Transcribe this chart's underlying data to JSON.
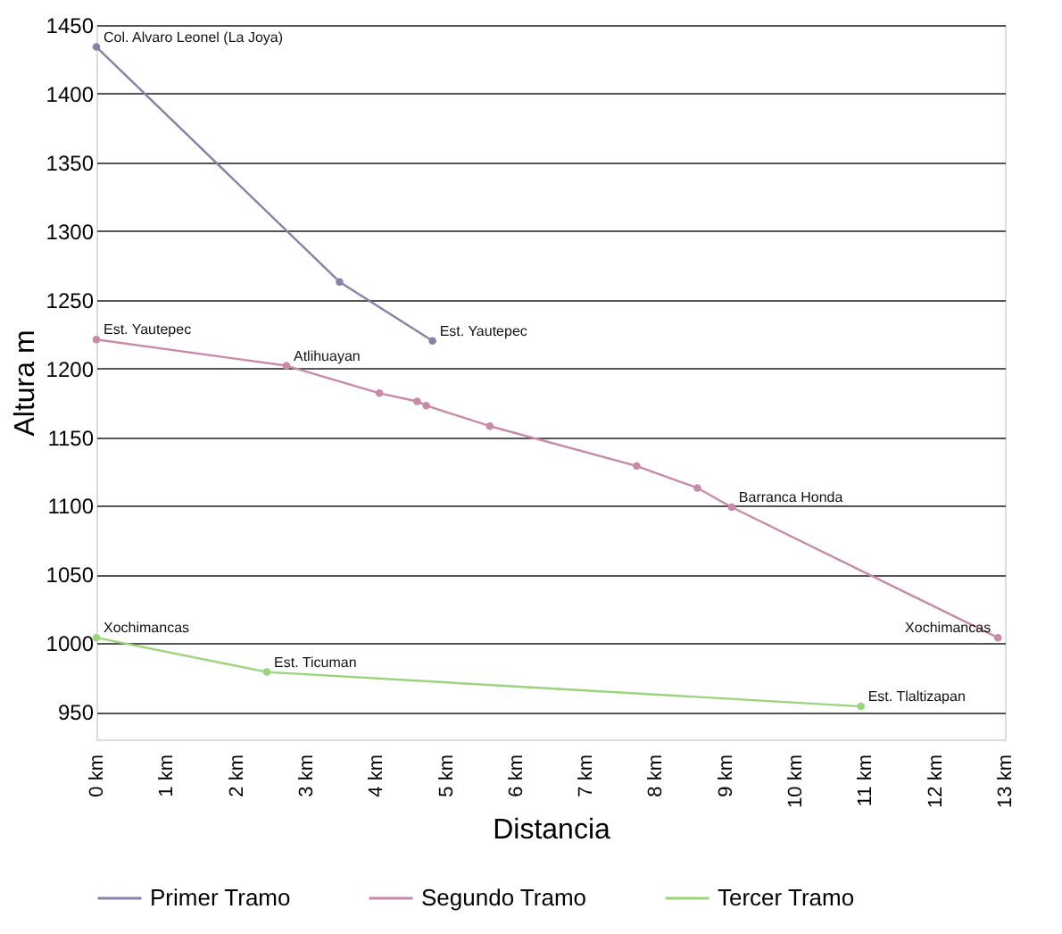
{
  "chart_data": {
    "type": "line",
    "xlabel": "Distancia",
    "ylabel": "Altura m",
    "xlim": [
      0,
      13
    ],
    "ylim": [
      930,
      1450
    ],
    "xticks": [
      {
        "value": 0,
        "label": "0 km"
      },
      {
        "value": 1,
        "label": "1 km"
      },
      {
        "value": 2,
        "label": "2 km"
      },
      {
        "value": 3,
        "label": "3 km"
      },
      {
        "value": 4,
        "label": "4 km"
      },
      {
        "value": 5,
        "label": "5 km"
      },
      {
        "value": 6,
        "label": "6 km"
      },
      {
        "value": 7,
        "label": "7 km"
      },
      {
        "value": 8,
        "label": "8 km"
      },
      {
        "value": 9,
        "label": "9 km"
      },
      {
        "value": 10,
        "label": "10 km"
      },
      {
        "value": 11,
        "label": "11 km"
      },
      {
        "value": 12,
        "label": "12 km"
      },
      {
        "value": 13,
        "label": "13 km"
      }
    ],
    "yticks": [
      950,
      1000,
      1050,
      1100,
      1150,
      1200,
      1250,
      1300,
      1350,
      1400,
      1450
    ],
    "grid": "y",
    "legend": "bottom",
    "marker": "circle",
    "line_style": "solid",
    "series": [
      {
        "name": "Primer Tramo",
        "color": "#8a80a8",
        "x": [
          0,
          3.48,
          4.81
        ],
        "values": [
          1434,
          1263,
          1220
        ]
      },
      {
        "name": "Segundo Tramo",
        "color": "#c98aa8",
        "x": [
          0,
          2.72,
          4.05,
          4.59,
          4.72,
          5.63,
          7.73,
          8.6,
          9.09,
          12.9
        ],
        "values": [
          1221,
          1202,
          1182,
          1176,
          1173,
          1158,
          1129,
          1113,
          1099,
          1004
        ]
      },
      {
        "name": "Tercer Tramo",
        "color": "#9bd47a",
        "x": [
          0,
          2.44,
          10.94
        ],
        "values": [
          1004,
          979,
          954
        ]
      }
    ],
    "annotations": [
      {
        "text": "Col. Alvaro Leonel (La Joya)",
        "x": 0,
        "y": 1434
      },
      {
        "text": "Est. Yautepec",
        "x": 4.81,
        "y": 1220
      },
      {
        "text": "Est. Yautepec",
        "x": 0,
        "y": 1221
      },
      {
        "text": "Atlihuayan",
        "x": 2.72,
        "y": 1202
      },
      {
        "text": "Barranca Honda",
        "x": 9.09,
        "y": 1099
      },
      {
        "text": "Xochimancas",
        "x": 12.9,
        "y": 1004
      },
      {
        "text": "Xochimancas",
        "x": 0,
        "y": 1004
      },
      {
        "text": "Est. Ticuman",
        "x": 2.44,
        "y": 979
      },
      {
        "text": "Est. Tlaltizapan",
        "x": 10.94,
        "y": 954
      }
    ]
  }
}
